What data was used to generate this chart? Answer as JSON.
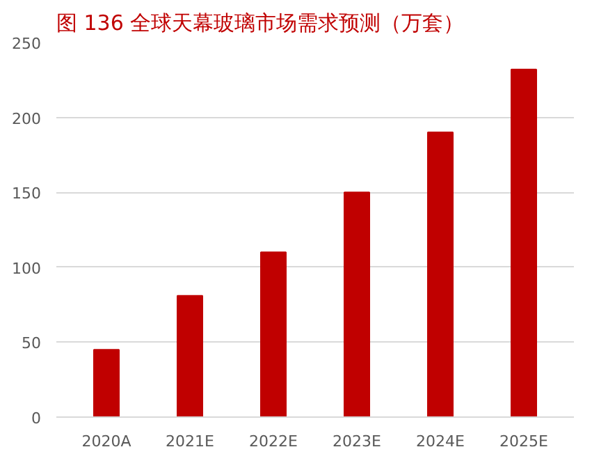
{
  "chart_data": {
    "type": "bar",
    "title": "图 136   全球天幕玻璃市场需求预测（万套）",
    "categories": [
      "2020A",
      "2021E",
      "2022E",
      "2023E",
      "2024E",
      "2025E"
    ],
    "values": [
      45,
      81,
      110,
      150,
      190,
      232
    ],
    "color": "#c00000",
    "ylim": [
      0,
      250
    ],
    "yticks": [
      0,
      50,
      100,
      150,
      200,
      250
    ],
    "grid": "y"
  }
}
